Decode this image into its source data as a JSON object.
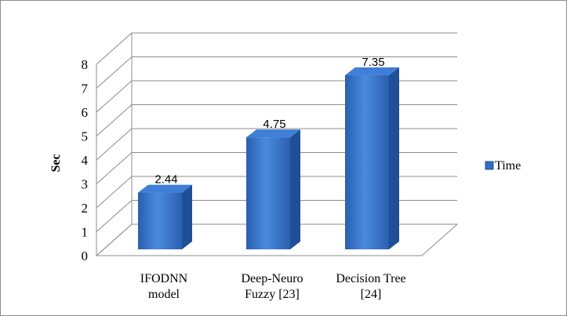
{
  "chart_data": {
    "type": "bar",
    "title": "",
    "xlabel": "",
    "ylabel": "Sec",
    "ylim": [
      0,
      8
    ],
    "yticks": [
      0,
      1,
      2,
      3,
      4,
      5,
      6,
      7,
      8
    ],
    "grid": true,
    "legend_position": "right",
    "categories": [
      [
        "IFODNN",
        "model"
      ],
      [
        "Deep-Neuro",
        "Fuzzy [23]"
      ],
      [
        "Decision Tree",
        "[24]"
      ]
    ],
    "series": [
      {
        "name": "Time",
        "values": [
          2.44,
          4.75,
          7.35
        ],
        "labels": [
          "2.44",
          "4.75",
          "7.35"
        ],
        "color": "#2f6fc4"
      }
    ]
  }
}
